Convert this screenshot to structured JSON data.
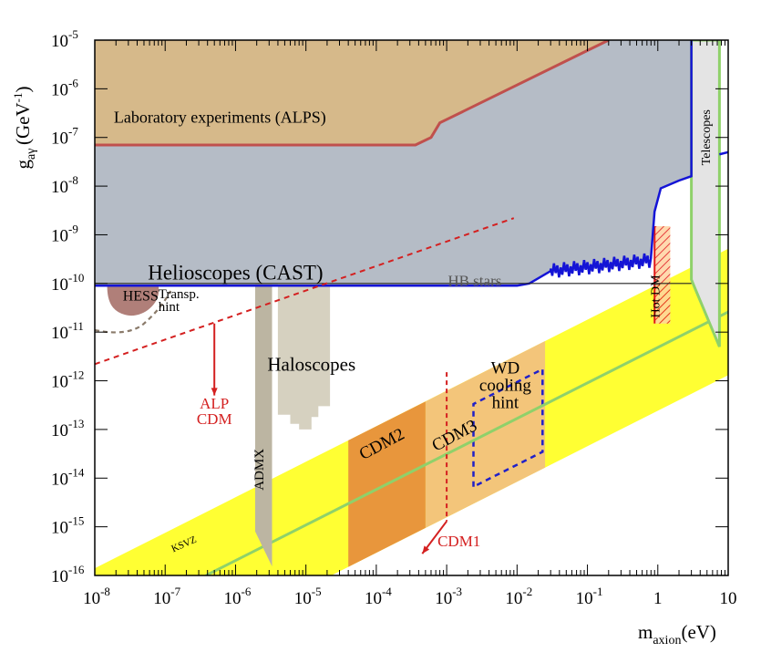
{
  "chart_data": {
    "type": "area",
    "log_x": true,
    "log_y": true,
    "xlim": [
      1e-08,
      10
    ],
    "ylim": [
      1e-16,
      1e-05
    ],
    "xlabel": {
      "main": "m",
      "sub": "axion",
      "unit": "(eV)"
    },
    "ylabel": {
      "main": "g",
      "sub": "aγ",
      "unit_open": "(GeV",
      "unit_exp": "-1",
      "unit_close": ")"
    },
    "x_ticks": [
      {
        "base": "10",
        "exp": "-8",
        "value": 1e-08
      },
      {
        "base": "10",
        "exp": "-7",
        "value": 1e-07
      },
      {
        "base": "10",
        "exp": "-6",
        "value": 1e-06
      },
      {
        "base": "10",
        "exp": "-5",
        "value": 1e-05
      },
      {
        "base": "10",
        "exp": "-4",
        "value": 0.0001
      },
      {
        "base": "10",
        "exp": "-3",
        "value": 0.001
      },
      {
        "base": "10",
        "exp": "-2",
        "value": 0.01
      },
      {
        "base": "10",
        "exp": "-1",
        "value": 0.1
      },
      {
        "base": "1",
        "exp": "",
        "value": 1
      },
      {
        "base": "10",
        "exp": "",
        "value": 10
      }
    ],
    "y_ticks": [
      {
        "base": "10",
        "exp": "-5",
        "value": 1e-05
      },
      {
        "base": "10",
        "exp": "-6",
        "value": 1e-06
      },
      {
        "base": "10",
        "exp": "-7",
        "value": 1e-07
      },
      {
        "base": "10",
        "exp": "-8",
        "value": 1e-08
      },
      {
        "base": "10",
        "exp": "-9",
        "value": 1e-09
      },
      {
        "base": "10",
        "exp": "-10",
        "value": 1e-10
      },
      {
        "base": "10",
        "exp": "-11",
        "value": 1e-11
      },
      {
        "base": "10",
        "exp": "-12",
        "value": 1e-12
      },
      {
        "base": "10",
        "exp": "-13",
        "value": 1e-13
      },
      {
        "base": "10",
        "exp": "-14",
        "value": 1e-14
      },
      {
        "base": "10",
        "exp": "-15",
        "value": 1e-15
      },
      {
        "base": "10",
        "exp": "-16",
        "value": 1e-16
      }
    ],
    "colors": {
      "helioscope_fill": "#b5bcc6",
      "alps_fill": "#d6b98a",
      "alps_edge": "#c0504d",
      "cast_line": "#1414d6",
      "hb_line": "#222222",
      "ksvz_band": "#ffff33",
      "ksvz_line": "#8fd16a",
      "admx": "#bcb5a2",
      "haloscope_projection": "#d6d1c0",
      "cdm2": "#e8963c",
      "cdm3": "#f3c57a",
      "hess": "#b07f79",
      "alp_red": "#d42020",
      "wd_blue": "#2020c8",
      "telescope_fill": "#e4e4e4",
      "telescope_edge": "#8fd16a",
      "hot_dm_hatch": "#e01818"
    },
    "regions": {
      "alps": {
        "label": "Laboratory experiments (ALPS)",
        "boundary": [
          [
            1e-08,
            7e-08
          ],
          [
            0.00036,
            7e-08
          ],
          [
            0.0006,
            1e-07
          ],
          [
            0.0008,
            2e-07
          ],
          [
            0.2,
            1e-05
          ]
        ]
      },
      "cast": {
        "label": "Helioscopes (CAST)",
        "limit": 9e-11,
        "boundary": [
          [
            1e-08,
            9e-11
          ],
          [
            0.01,
            9e-11
          ],
          [
            0.015,
            1e-10
          ],
          [
            0.03,
            1.8e-10
          ],
          [
            0.1,
            2e-10
          ],
          [
            0.3,
            2.3e-10
          ],
          [
            0.7,
            3e-10
          ],
          [
            0.8,
            3.5e-10
          ],
          [
            0.9,
            3e-09
          ],
          [
            1.1,
            9e-09
          ],
          [
            2.0,
            1.3e-08
          ],
          [
            3.0,
            1.6e-08
          ],
          [
            3.0,
            1e-05
          ]
        ]
      },
      "hb": {
        "label": "HB stars",
        "value": 1e-10
      },
      "telescopes": {
        "label": "Telescopes",
        "x": [
          3,
          7.5
        ],
        "y_top": 1e-05,
        "y_bottom": 5e-12
      },
      "hot_dm": {
        "label": "Hot DM",
        "x": [
          0.9,
          1.5
        ],
        "y": [
          1.5e-11,
          1.5e-09
        ]
      },
      "hess": {
        "label": "HESS",
        "x": [
          1.5e-08,
          8e-08
        ],
        "y": [
          2e-11,
          9e-11
        ]
      },
      "transparency_hint": {
        "label": "Transp.\nhint"
      },
      "admx": {
        "label": "ADMX",
        "x": [
          1.9e-06,
          3.3e-06
        ],
        "y_bottom": 8e-16
      },
      "haloscopes": {
        "label": "Haloscopes",
        "projection_x": [
          4e-06,
          2.2e-05
        ],
        "projection_y_bottom": [
          1e-13,
          1e-13,
          1.2e-13,
          2e-13
        ]
      },
      "ksvz": {
        "label": "KSVZ",
        "line": [
          [
            3.8e-07,
            1e-16
          ],
          [
            10,
            2.6e-11
          ]
        ],
        "band_width_decades": 1.3
      },
      "cdm2": {
        "label": "CDM2",
        "x": [
          4e-05,
          0.0005
        ]
      },
      "cdm3": {
        "label": "CDM3",
        "x": [
          0.0005,
          0.025
        ]
      },
      "wd": {
        "label": "WD\ncooling\nhint",
        "x": [
          0.0024,
          0.023
        ]
      },
      "alp_cdm": {
        "label": "ALP\nCDM",
        "line": [
          [
            1e-08,
            2.2e-12
          ],
          [
            0.009,
            2.2e-09
          ]
        ]
      },
      "cdm1": {
        "label": "CDM1",
        "x": 0.001
      }
    },
    "grid": false
  }
}
